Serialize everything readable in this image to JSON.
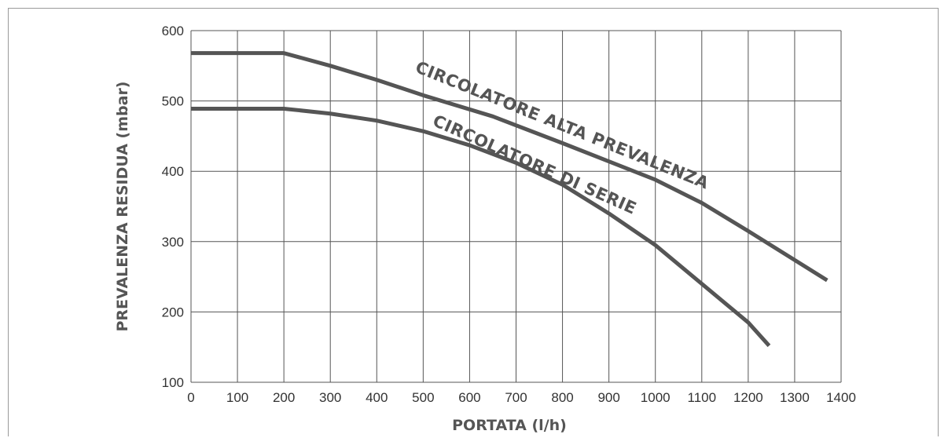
{
  "chart_data": {
    "type": "line",
    "title": "",
    "xlabel": "PORTATA (l/h)",
    "ylabel": "PREVALENZA RESIDUA (mbar)",
    "xlim": [
      0,
      1400
    ],
    "ylim": [
      100,
      600
    ],
    "x_ticks": [
      0,
      100,
      200,
      300,
      400,
      500,
      600,
      700,
      800,
      900,
      1000,
      1100,
      1200,
      1300,
      1400
    ],
    "y_ticks": [
      100,
      200,
      300,
      400,
      500,
      600
    ],
    "grid": true,
    "series": [
      {
        "name": "CIRCOLATORE ALTA PREVALENZA",
        "x": [
          0,
          200,
          300,
          400,
          500,
          650,
          800,
          1000,
          1100,
          1200,
          1370
        ],
        "y": [
          568,
          568,
          550,
          530,
          508,
          478,
          440,
          388,
          355,
          315,
          245
        ]
      },
      {
        "name": "CIRCOLATORE DI SERIE",
        "x": [
          0,
          200,
          300,
          400,
          500,
          600,
          700,
          800,
          900,
          1000,
          1100,
          1200,
          1245
        ],
        "y": [
          489,
          489,
          482,
          472,
          457,
          437,
          412,
          381,
          340,
          295,
          240,
          185,
          152
        ]
      }
    ]
  }
}
